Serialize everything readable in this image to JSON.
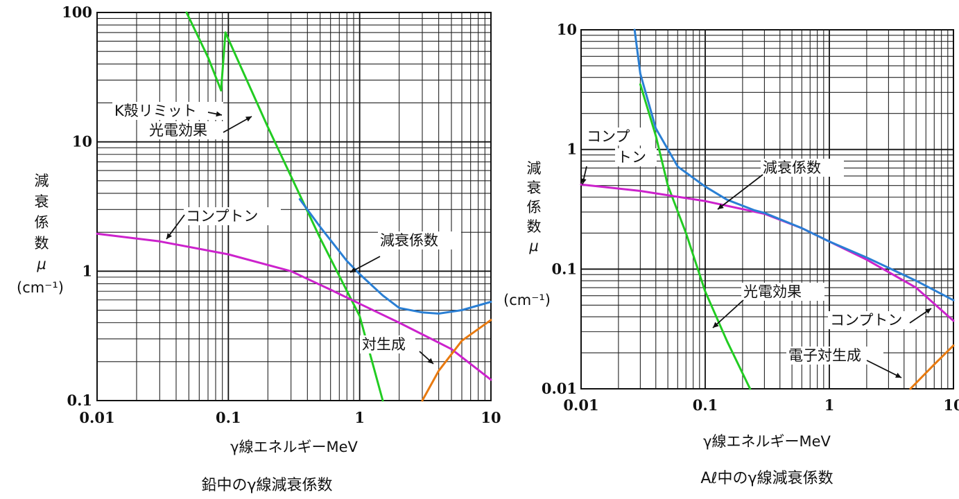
{
  "chart_data": [
    {
      "type": "line",
      "scale": "log-log",
      "title": "鉛中のγ線減衰係数",
      "xlabel": "γ線エネルギーMeV",
      "ylabel": [
        "減",
        "衰",
        "係",
        "数",
        "μ",
        "(cm⁻¹)"
      ],
      "xlim": [
        0.01,
        10
      ],
      "ylim": [
        0.1,
        100
      ],
      "x_ticks": [
        "0.01",
        "0.1",
        "1",
        "10"
      ],
      "y_ticks": [
        "0.1",
        "1",
        "10",
        "100"
      ],
      "grid": true,
      "colors": {
        "total": "#2a7fd4",
        "photo": "#22cc22",
        "compton": "#cc22cc",
        "pair": "#e87a10"
      },
      "series": [
        {
          "name": "光電効果",
          "key": "photo",
          "segments": [
            [
              [
                0.048,
                100
              ],
              [
                0.07,
                45
              ],
              [
                0.088,
                25
              ]
            ],
            [
              [
                0.088,
                25
              ],
              [
                0.095,
                70
              ]
            ],
            [
              [
                0.095,
                70
              ],
              [
                0.2,
                13
              ],
              [
                0.5,
                1.8
              ],
              [
                1.0,
                0.45
              ],
              [
                1.5,
                0.1
              ]
            ]
          ]
        },
        {
          "name": "コンプトン",
          "key": "compton",
          "segments": [
            [
              [
                0.01,
                1.95
              ],
              [
                0.03,
                1.7
              ],
              [
                0.1,
                1.35
              ],
              [
                0.3,
                1.0
              ],
              [
                0.6,
                0.72
              ],
              [
                1.0,
                0.56
              ],
              [
                2.0,
                0.4
              ],
              [
                5.0,
                0.25
              ],
              [
                10,
                0.145
              ]
            ]
          ]
        },
        {
          "name": "減衰係数",
          "key": "total",
          "segments": [
            [
              [
                0.35,
                3.6
              ],
              [
                0.5,
                2.2
              ],
              [
                0.8,
                1.2
              ],
              [
                1.0,
                0.95
              ],
              [
                1.5,
                0.65
              ],
              [
                2.0,
                0.52
              ],
              [
                3.0,
                0.48
              ],
              [
                4.0,
                0.47
              ],
              [
                6.0,
                0.5
              ],
              [
                10,
                0.58
              ]
            ]
          ]
        },
        {
          "name": "対生成",
          "key": "pair",
          "segments": [
            [
              [
                3.0,
                0.1
              ],
              [
                4.0,
                0.17
              ],
              [
                6.0,
                0.29
              ],
              [
                10,
                0.42
              ]
            ]
          ]
        }
      ],
      "annotations": [
        {
          "text": "K殻リミット",
          "key": "klimit"
        },
        {
          "text": "光電効果",
          "key": "photo"
        },
        {
          "text": "コンプトン",
          "key": "compton"
        },
        {
          "text": "減衰係数",
          "key": "total"
        },
        {
          "text": "対生成",
          "key": "pair"
        }
      ]
    },
    {
      "type": "line",
      "scale": "log-log",
      "title": "Aℓ中のγ線減衰係数",
      "xlabel": "γ線エネルギーMeV",
      "ylabel": [
        "減",
        "衰",
        "係",
        "数",
        "μ",
        "(cm⁻¹)"
      ],
      "xlim": [
        0.01,
        10
      ],
      "ylim": [
        0.01,
        10
      ],
      "x_ticks": [
        "0.01",
        "0.1",
        "1",
        "10"
      ],
      "y_ticks": [
        "0.01",
        "0.1",
        "1",
        "10"
      ],
      "grid": true,
      "colors": {
        "total": "#2a7fd4",
        "photo": "#22cc22",
        "compton": "#cc22cc",
        "pair": "#e87a10"
      },
      "series": [
        {
          "name": "光電効果",
          "key": "photo",
          "segments": [
            [
              [
                0.03,
                3.5
              ],
              [
                0.04,
                1.3
              ],
              [
                0.05,
                0.5
              ],
              [
                0.07,
                0.2
              ],
              [
                0.1,
                0.065
              ],
              [
                0.15,
                0.025
              ],
              [
                0.23,
                0.01
              ]
            ]
          ]
        },
        {
          "name": "コンプトン",
          "key": "compton",
          "segments": [
            [
              [
                0.01,
                0.51
              ],
              [
                0.03,
                0.45
              ],
              [
                0.1,
                0.37
              ],
              [
                0.3,
                0.29
              ],
              [
                0.6,
                0.22
              ],
              [
                1.0,
                0.17
              ],
              [
                2.0,
                0.12
              ],
              [
                5.0,
                0.07
              ],
              [
                10,
                0.037
              ]
            ]
          ]
        },
        {
          "name": "減衰係数",
          "key": "total",
          "segments": [
            [
              [
                0.027,
                10
              ],
              [
                0.03,
                4.3
              ],
              [
                0.04,
                1.5
              ],
              [
                0.06,
                0.72
              ],
              [
                0.1,
                0.49
              ],
              [
                0.15,
                0.38
              ],
              [
                0.25,
                0.31
              ],
              [
                0.3,
                0.295
              ],
              [
                0.6,
                0.22
              ],
              [
                1.0,
                0.17
              ],
              [
                2.0,
                0.125
              ],
              [
                5.0,
                0.08
              ],
              [
                10,
                0.055
              ]
            ]
          ]
        },
        {
          "name": "電子対生成",
          "key": "pair",
          "segments": [
            [
              [
                4.5,
                0.01
              ],
              [
                7.0,
                0.016
              ],
              [
                10,
                0.023
              ]
            ]
          ]
        }
      ],
      "annotations": [
        {
          "text": "コンプ",
          "key": "compton-top1"
        },
        {
          "text": "トン",
          "key": "compton-top2"
        },
        {
          "text": "減衰係数",
          "key": "total"
        },
        {
          "text": "光電効果",
          "key": "photo"
        },
        {
          "text": "コンプトン",
          "key": "compton"
        },
        {
          "text": "電子対生成",
          "key": "pair"
        }
      ]
    }
  ]
}
